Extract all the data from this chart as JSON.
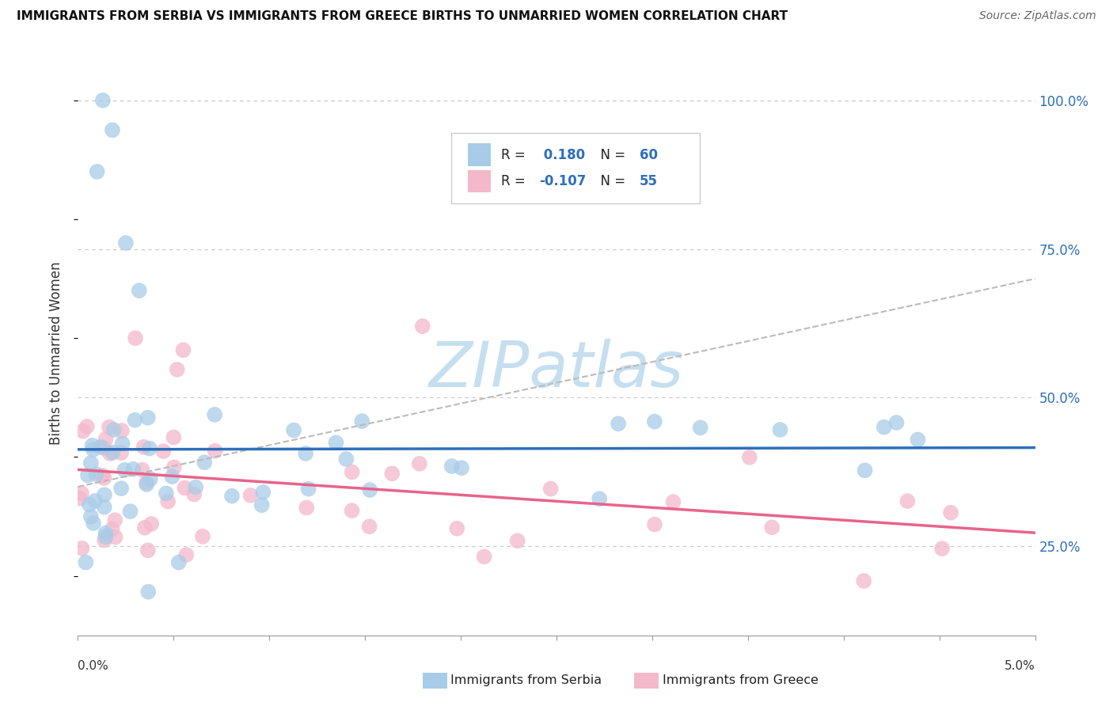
{
  "title": "IMMIGRANTS FROM SERBIA VS IMMIGRANTS FROM GREECE BIRTHS TO UNMARRIED WOMEN CORRELATION CHART",
  "source": "Source: ZipAtlas.com",
  "ylabel": "Births to Unmarried Women",
  "y_ticks_labels": [
    "25.0%",
    "50.0%",
    "75.0%",
    "100.0%"
  ],
  "y_tick_vals": [
    0.25,
    0.5,
    0.75,
    1.0
  ],
  "x_min": 0.0,
  "x_max": 0.05,
  "y_min": 0.1,
  "y_max": 1.05,
  "legend_R1": " 0.180",
  "legend_N1": "60",
  "legend_R2": "-0.107",
  "legend_N2": "55",
  "serbia_color": "#a8cce8",
  "greece_color": "#f4b8cb",
  "serbia_line_color": "#2e6fba",
  "greece_line_color": "#e8648a",
  "serbia_dash_color": "#aaaaaa",
  "watermark_color": "#c5dff0",
  "watermark_text": "ZIPatlas",
  "bottom_legend_serbia": "Immigrants from Serbia",
  "bottom_legend_greece": "Immigrants from Greece",
  "serbia_intercept": 0.345,
  "serbia_slope_per_unit": 3.2,
  "greece_intercept": 0.355,
  "greece_slope_per_unit": -2.5
}
